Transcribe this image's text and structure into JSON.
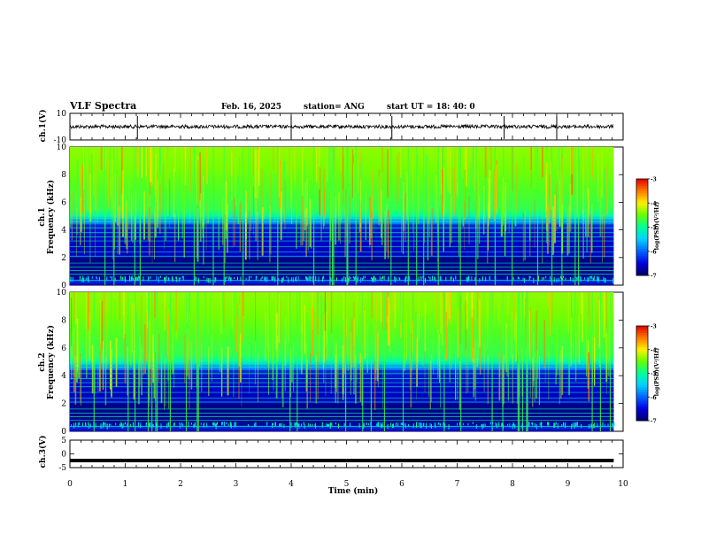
{
  "header": {
    "title": "VLF Spectra",
    "date": "Feb. 16, 2025",
    "station": "station= ANG",
    "start": "start  UT =   18: 40: 0"
  },
  "chart_data": [
    {
      "type": "line",
      "panel": "ch1-waveform",
      "ylabel": "ch.1(V)",
      "ylim": [
        -10,
        10
      ],
      "yticks": [
        "10",
        "-10"
      ],
      "xlim": [
        0,
        10
      ],
      "baseline": 0,
      "note_spikes_at_min": [
        1.22,
        4.0,
        5.82,
        7.85,
        8.8
      ]
    },
    {
      "type": "heatmap",
      "panel": "ch1-spectrogram",
      "ylabel": "ch.1\nFrequency (kHz)",
      "ylabel_lines": [
        "ch.1",
        "Frequency (kHz)"
      ],
      "ylim": [
        0,
        10
      ],
      "yticks": [
        "0",
        "2",
        "4",
        "6",
        "8",
        "10"
      ],
      "xlim": [
        0,
        9.83
      ],
      "colorbar": {
        "min": -7,
        "max": -3,
        "ticks": [
          "-3",
          "-4",
          "-5",
          "-6",
          "-7"
        ],
        "label": "log(PSD)(V²/Hz)"
      }
    },
    {
      "type": "heatmap",
      "panel": "ch2-spectrogram",
      "ylabel": "ch.2\nFrequency (kHz)",
      "ylabel_lines": [
        "ch.2",
        "Frequency (kHz)"
      ],
      "ylim": [
        0,
        10
      ],
      "yticks": [
        "0",
        "2",
        "4",
        "6",
        "8",
        "10"
      ],
      "xlim": [
        0,
        9.83
      ],
      "colorbar": {
        "min": -7,
        "max": -3,
        "ticks": [
          "-3",
          "-4",
          "-5",
          "-6",
          "-7"
        ],
        "label": "log(PSD)(V²/Hz)"
      }
    },
    {
      "type": "line",
      "panel": "ch3-waveform",
      "ylabel": "ch.3(V)",
      "ylim": [
        -5,
        5
      ],
      "yticks": [
        "5",
        "0",
        "-5"
      ],
      "xlim": [
        0,
        10
      ],
      "baseline": -2.4
    }
  ],
  "xaxis": {
    "label": "Time (min)",
    "ticks": [
      "0",
      "1",
      "2",
      "3",
      "4",
      "5",
      "6",
      "7",
      "8",
      "9",
      "10"
    ],
    "range": [
      0,
      10
    ]
  },
  "colors": {
    "axis": "#000000",
    "colormap": [
      "#000064",
      "#0000e0",
      "#0064ff",
      "#00d2ff",
      "#00ff9c",
      "#64ff00",
      "#fff000",
      "#ff7800",
      "#e00000",
      "#ffffff"
    ]
  }
}
